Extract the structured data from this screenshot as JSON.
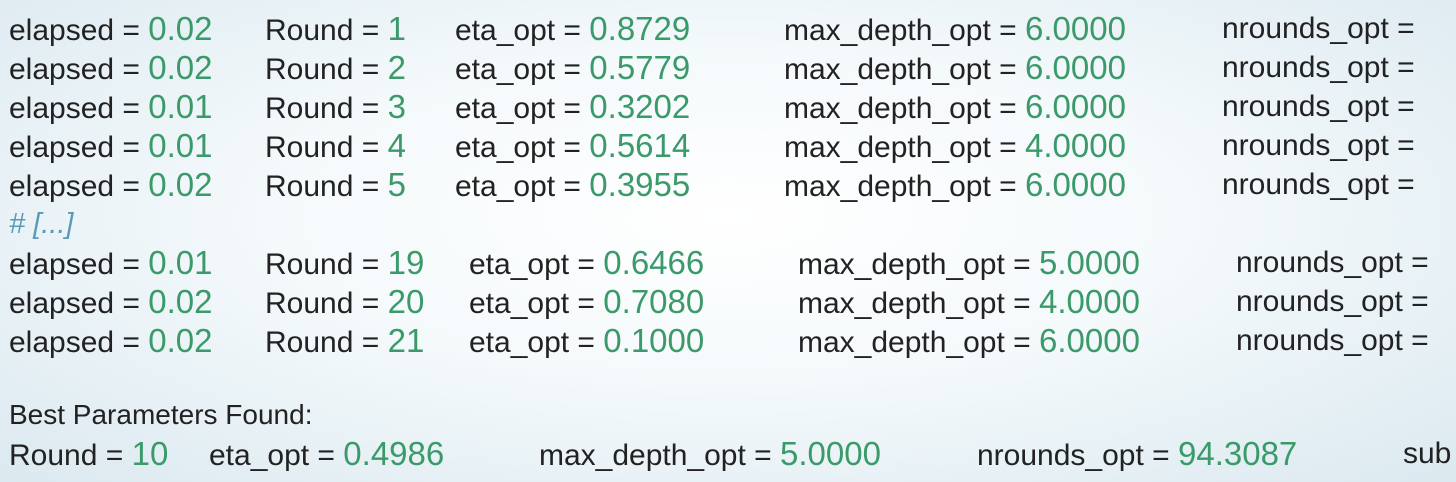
{
  "rounds_before_comment": [
    {
      "elapsed_label": "elapsed = ",
      "elapsed": "0.02",
      "round_label": "Round = ",
      "round": "1",
      "eta_label": "eta_opt = ",
      "eta": "0.8729",
      "depth_label": "max_depth_opt = ",
      "depth": "6.0000",
      "nrounds_label": "nrounds_opt ="
    },
    {
      "elapsed_label": "elapsed = ",
      "elapsed": "0.02",
      "round_label": "Round = ",
      "round": "2",
      "eta_label": "eta_opt = ",
      "eta": "0.5779",
      "depth_label": "max_depth_opt = ",
      "depth": "6.0000",
      "nrounds_label": "nrounds_opt ="
    },
    {
      "elapsed_label": "elapsed = ",
      "elapsed": "0.01",
      "round_label": "Round = ",
      "round": "3",
      "eta_label": "eta_opt = ",
      "eta": "0.3202",
      "depth_label": "max_depth_opt = ",
      "depth": "6.0000",
      "nrounds_label": "nrounds_opt ="
    },
    {
      "elapsed_label": "elapsed = ",
      "elapsed": "0.01",
      "round_label": "Round = ",
      "round": "4",
      "eta_label": "eta_opt = ",
      "eta": "0.5614",
      "depth_label": "max_depth_opt = ",
      "depth": "4.0000",
      "nrounds_label": "nrounds_opt ="
    },
    {
      "elapsed_label": "elapsed = ",
      "elapsed": "0.02",
      "round_label": "Round = ",
      "round": "5",
      "eta_label": "eta_opt = ",
      "eta": "0.3955",
      "depth_label": "max_depth_opt = ",
      "depth": "6.0000",
      "nrounds_label": "nrounds_opt ="
    }
  ],
  "comment": "# [...]",
  "rounds_after_comment": [
    {
      "elapsed_label": "elapsed = ",
      "elapsed": "0.01",
      "round_label": "Round = ",
      "round": "19",
      "eta_label": "eta_opt = ",
      "eta": "0.6466",
      "depth_label": "max_depth_opt = ",
      "depth": "5.0000",
      "nrounds_label": "nrounds_opt ="
    },
    {
      "elapsed_label": "elapsed = ",
      "elapsed": "0.02",
      "round_label": "Round = ",
      "round": "20",
      "eta_label": "eta_opt = ",
      "eta": "0.7080",
      "depth_label": "max_depth_opt = ",
      "depth": "4.0000",
      "nrounds_label": "nrounds_opt ="
    },
    {
      "elapsed_label": "elapsed = ",
      "elapsed": "0.02",
      "round_label": "Round = ",
      "round": "21",
      "eta_label": "eta_opt = ",
      "eta": "0.1000",
      "depth_label": "max_depth_opt = ",
      "depth": "6.0000",
      "nrounds_label": "nrounds_opt ="
    }
  ],
  "best": {
    "header": "Best Parameters Found:",
    "round_label": "Round = ",
    "round": "10",
    "eta_label": "eta_opt = ",
    "eta": "0.4986",
    "depth_label": "max_depth_opt = ",
    "depth": "5.0000",
    "nrounds_label": "nrounds_opt = ",
    "nrounds": "94.3087",
    "tail": "sub"
  },
  "colors": {
    "number": "#3a9a6a",
    "text": "#222222",
    "comment": "#5b9ab6"
  }
}
